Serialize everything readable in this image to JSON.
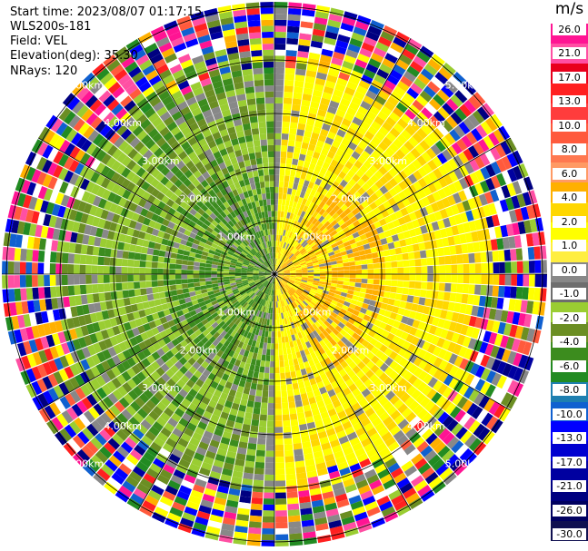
{
  "info": {
    "start_time": "Start time: 2023/08/07 01:17:15",
    "instrument": "WLS200s-181",
    "field": "Field: VEL",
    "elevation": "Elevation(deg): 35.30",
    "nrays": "NRays: 120"
  },
  "range_rings": [
    "1.00km",
    "2.00km",
    "3.00km",
    "4.00km",
    "5.00km"
  ],
  "colorbar": {
    "unit": "m/s",
    "ticks": [
      "26.0",
      "21.0",
      "17.0",
      "13.0",
      "10.0",
      "8.0",
      "6.0",
      "4.0",
      "2.0",
      "1.0",
      "0.0",
      "-1.0",
      "-2.0",
      "-4.0",
      "-6.0",
      "-8.0",
      "-10.0",
      "-13.0",
      "-17.0",
      "-21.0",
      "-26.0",
      "-30.0"
    ],
    "colors": [
      "#ff1493",
      "#ff4fa3",
      "#e8001c",
      "#ff2020",
      "#ff3c3c",
      "#ff5a3c",
      "#ff7850",
      "#ff9a64",
      "#ffb000",
      "#ffd700",
      "#ffff00",
      "#ffee40",
      "#888888",
      "#6e6e6e",
      "#9acd32",
      "#6b8e23",
      "#3c8c1e",
      "#228b22",
      "#1e7fb0",
      "#1060d0",
      "#0000ff",
      "#0000d0",
      "#0000a0",
      "#000080",
      "#000060",
      "#101050"
    ]
  }
}
